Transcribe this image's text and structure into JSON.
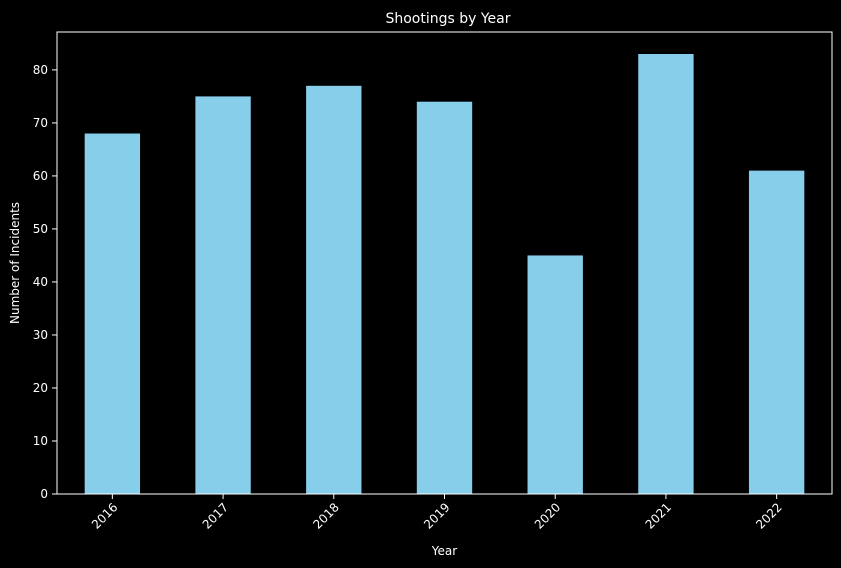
{
  "chart_data": {
    "type": "bar",
    "title": "Shootings by Year",
    "xlabel": "Year",
    "ylabel": "Number of Incidents",
    "categories": [
      "2016",
      "2017",
      "2018",
      "2019",
      "2020",
      "2021",
      "2022"
    ],
    "values": [
      68,
      75,
      77,
      74,
      45,
      83,
      61
    ],
    "ylim": [
      0,
      87.15
    ],
    "yticks": [
      0,
      10,
      20,
      30,
      40,
      50,
      60,
      70,
      80
    ],
    "ytick_labels": [
      "0",
      "10",
      "20",
      "30",
      "40",
      "50",
      "60",
      "70",
      "80"
    ],
    "xtick_rotation": 45,
    "grid": false,
    "legend": "none",
    "colors": {
      "background": "#000000",
      "bar": "#87ceeb",
      "axes": "#ffffff",
      "text": "#ffffff"
    }
  }
}
